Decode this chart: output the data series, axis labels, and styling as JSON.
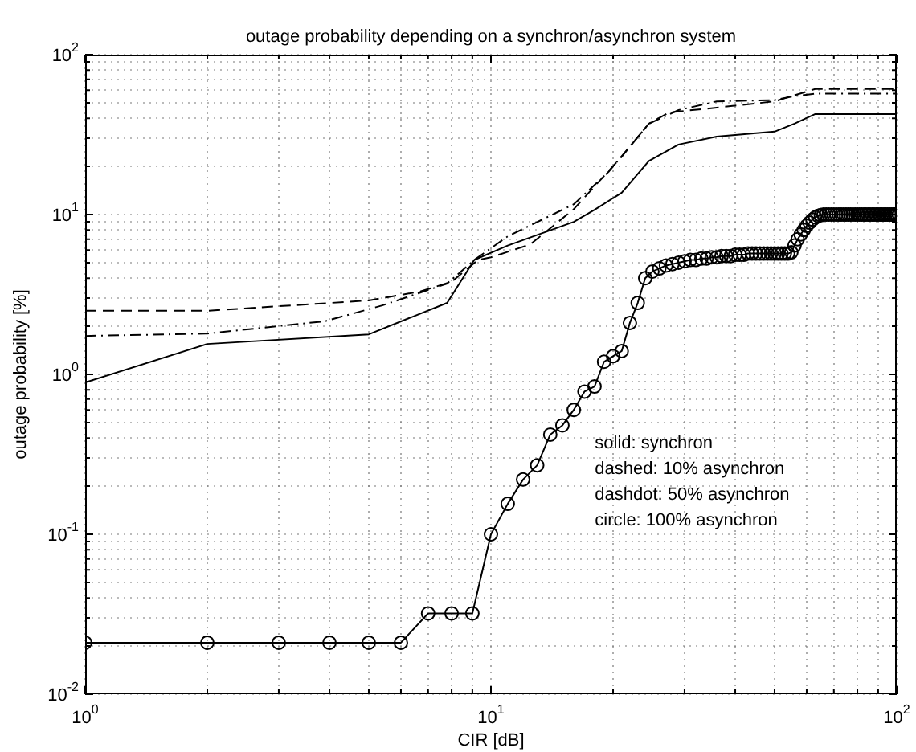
{
  "chart_data": {
    "type": "line",
    "title": "outage probability depending on a synchron/asynchron system",
    "xlabel": "CIR [dB]",
    "ylabel": "outage probability [%]",
    "log": "xy",
    "grid": true,
    "legend": false,
    "xlim": [
      1,
      100
    ],
    "ylim": [
      0.01,
      100
    ],
    "xticks": [
      {
        "value": 1,
        "label": "10$^{0}$"
      },
      {
        "value": 2,
        "label": null
      },
      {
        "value": 3,
        "label": null
      },
      {
        "value": 4,
        "label": null
      },
      {
        "value": 5,
        "label": null
      },
      {
        "value": 6,
        "label": null
      },
      {
        "value": 7,
        "label": null
      },
      {
        "value": 8,
        "label": null
      },
      {
        "value": 9,
        "label": null
      },
      {
        "value": 10,
        "label": "10$^{1}$"
      },
      {
        "value": 20,
        "label": null
      },
      {
        "value": 30,
        "label": null
      },
      {
        "value": 40,
        "label": null
      },
      {
        "value": 50,
        "label": null
      },
      {
        "value": 60,
        "label": null
      },
      {
        "value": 70,
        "label": null
      },
      {
        "value": 80,
        "label": null
      },
      {
        "value": 90,
        "label": null
      },
      {
        "value": 100,
        "label": "10$^{2}$"
      }
    ],
    "yticks": [
      {
        "value": 0.01,
        "label": "10$^{-2}$"
      },
      {
        "value": 0.02,
        "label": null
      },
      {
        "value": 0.03,
        "label": null
      },
      {
        "value": 0.04,
        "label": null
      },
      {
        "value": 0.05,
        "label": null
      },
      {
        "value": 0.06,
        "label": null
      },
      {
        "value": 0.07,
        "label": null
      },
      {
        "value": 0.08,
        "label": null
      },
      {
        "value": 0.09,
        "label": null
      },
      {
        "value": 0.1,
        "label": "10$^{-1}$"
      },
      {
        "value": 0.2,
        "label": null
      },
      {
        "value": 0.3,
        "label": null
      },
      {
        "value": 0.4,
        "label": null
      },
      {
        "value": 0.5,
        "label": null
      },
      {
        "value": 0.6,
        "label": null
      },
      {
        "value": 0.7,
        "label": null
      },
      {
        "value": 0.8,
        "label": null
      },
      {
        "value": 0.9,
        "label": null
      },
      {
        "value": 1,
        "label": "10$^{0}$"
      },
      {
        "value": 2,
        "label": null
      },
      {
        "value": 3,
        "label": null
      },
      {
        "value": 4,
        "label": null
      },
      {
        "value": 5,
        "label": null
      },
      {
        "value": 6,
        "label": null
      },
      {
        "value": 7,
        "label": null
      },
      {
        "value": 8,
        "label": null
      },
      {
        "value": 9,
        "label": null
      },
      {
        "value": 10,
        "label": "10$^{1}$"
      },
      {
        "value": 20,
        "label": null
      },
      {
        "value": 30,
        "label": null
      },
      {
        "value": 40,
        "label": null
      },
      {
        "value": 50,
        "label": null
      },
      {
        "value": 60,
        "label": null
      },
      {
        "value": 70,
        "label": null
      },
      {
        "value": 80,
        "label": null
      },
      {
        "value": 90,
        "label": null
      },
      {
        "value": 100,
        "label": "10$^{2}$"
      }
    ],
    "annotations": [
      "solid: synchron",
      "dashed: 10% asynchron",
      "dashdot: 50% asynchron",
      "circle: 100% asynchron"
    ],
    "series": [
      {
        "color": "#000000",
        "line_style": "solid",
        "marker": "none",
        "x": [
          1,
          2,
          5,
          7.8,
          9.1,
          11,
          16,
          18,
          21,
          24.5,
          29,
          36,
          50,
          56,
          63,
          100
        ],
        "values": [
          0.89,
          1.55,
          1.78,
          2.8,
          5.2,
          6.4,
          9.0,
          10.7,
          13.7,
          21.6,
          27.4,
          30.7,
          33,
          37,
          42.5,
          42.5
        ]
      },
      {
        "color": "#000000",
        "line_style": "dashed",
        "marker": "none",
        "x": [
          1,
          2,
          5,
          6.7,
          8,
          9.3,
          10,
          12.5,
          16,
          21,
          24.5,
          27.5,
          36,
          50,
          63,
          100
        ],
        "values": [
          2.5,
          2.5,
          2.9,
          3.3,
          3.8,
          5.2,
          5.4,
          6.5,
          10.8,
          23,
          37,
          43.5,
          46.6,
          51,
          61,
          61
        ]
      },
      {
        "color": "#000000",
        "line_style": "dashdot",
        "marker": "none",
        "x": [
          1,
          2,
          3.9,
          5.4,
          7.8,
          9.1,
          11,
          16,
          19.5,
          24.5,
          29,
          36,
          50,
          56,
          63,
          100
        ],
        "values": [
          1.74,
          1.8,
          2.15,
          2.7,
          3.7,
          5.2,
          7.3,
          11.6,
          18.5,
          37,
          45,
          51,
          52,
          55,
          57,
          57
        ]
      },
      {
        "color": "#000000",
        "line_style": "solid",
        "marker": "circle",
        "x": [
          1,
          2,
          3,
          4,
          5,
          6,
          7,
          8,
          9,
          10,
          11,
          12,
          13,
          14,
          15,
          16,
          17,
          18,
          19,
          20,
          21,
          22,
          23,
          24,
          25,
          26,
          27,
          28,
          29,
          30,
          31,
          32,
          33,
          34,
          35,
          36,
          37,
          38,
          39,
          40,
          41,
          42,
          43,
          44,
          45,
          46,
          47,
          48,
          49,
          50,
          51,
          52,
          53,
          54,
          55,
          56,
          57,
          58,
          59,
          60,
          61,
          62,
          63,
          64,
          65,
          66,
          67,
          68,
          69,
          70,
          71,
          72,
          73,
          74,
          75,
          76,
          77,
          78,
          79,
          80,
          81,
          82,
          83,
          84,
          85,
          86,
          87,
          88,
          89,
          90,
          91,
          92,
          93,
          94,
          95,
          96,
          97,
          98,
          99,
          100
        ],
        "values": [
          0.021,
          0.021,
          0.021,
          0.021,
          0.021,
          0.021,
          0.032,
          0.032,
          0.032,
          0.1,
          0.155,
          0.22,
          0.27,
          0.42,
          0.48,
          0.6,
          0.78,
          0.84,
          1.2,
          1.3,
          1.4,
          2.1,
          2.8,
          4.0,
          4.4,
          4.6,
          4.8,
          4.9,
          5.0,
          5.1,
          5.2,
          5.2,
          5.3,
          5.3,
          5.4,
          5.4,
          5.5,
          5.5,
          5.5,
          5.6,
          5.6,
          5.6,
          5.7,
          5.7,
          5.7,
          5.7,
          5.7,
          5.7,
          5.7,
          5.7,
          5.7,
          5.7,
          5.7,
          5.7,
          5.8,
          6.4,
          7.0,
          7.5,
          8.0,
          8.5,
          8.9,
          9.3,
          9.6,
          9.8,
          9.9,
          10,
          10,
          10,
          10,
          10,
          10,
          10,
          10,
          10,
          10,
          10,
          10,
          10,
          10,
          10,
          10,
          10,
          10,
          10,
          10,
          10,
          10,
          10,
          10,
          10,
          10,
          10,
          10,
          10,
          10,
          10,
          10,
          10,
          10,
          10
        ]
      }
    ]
  }
}
